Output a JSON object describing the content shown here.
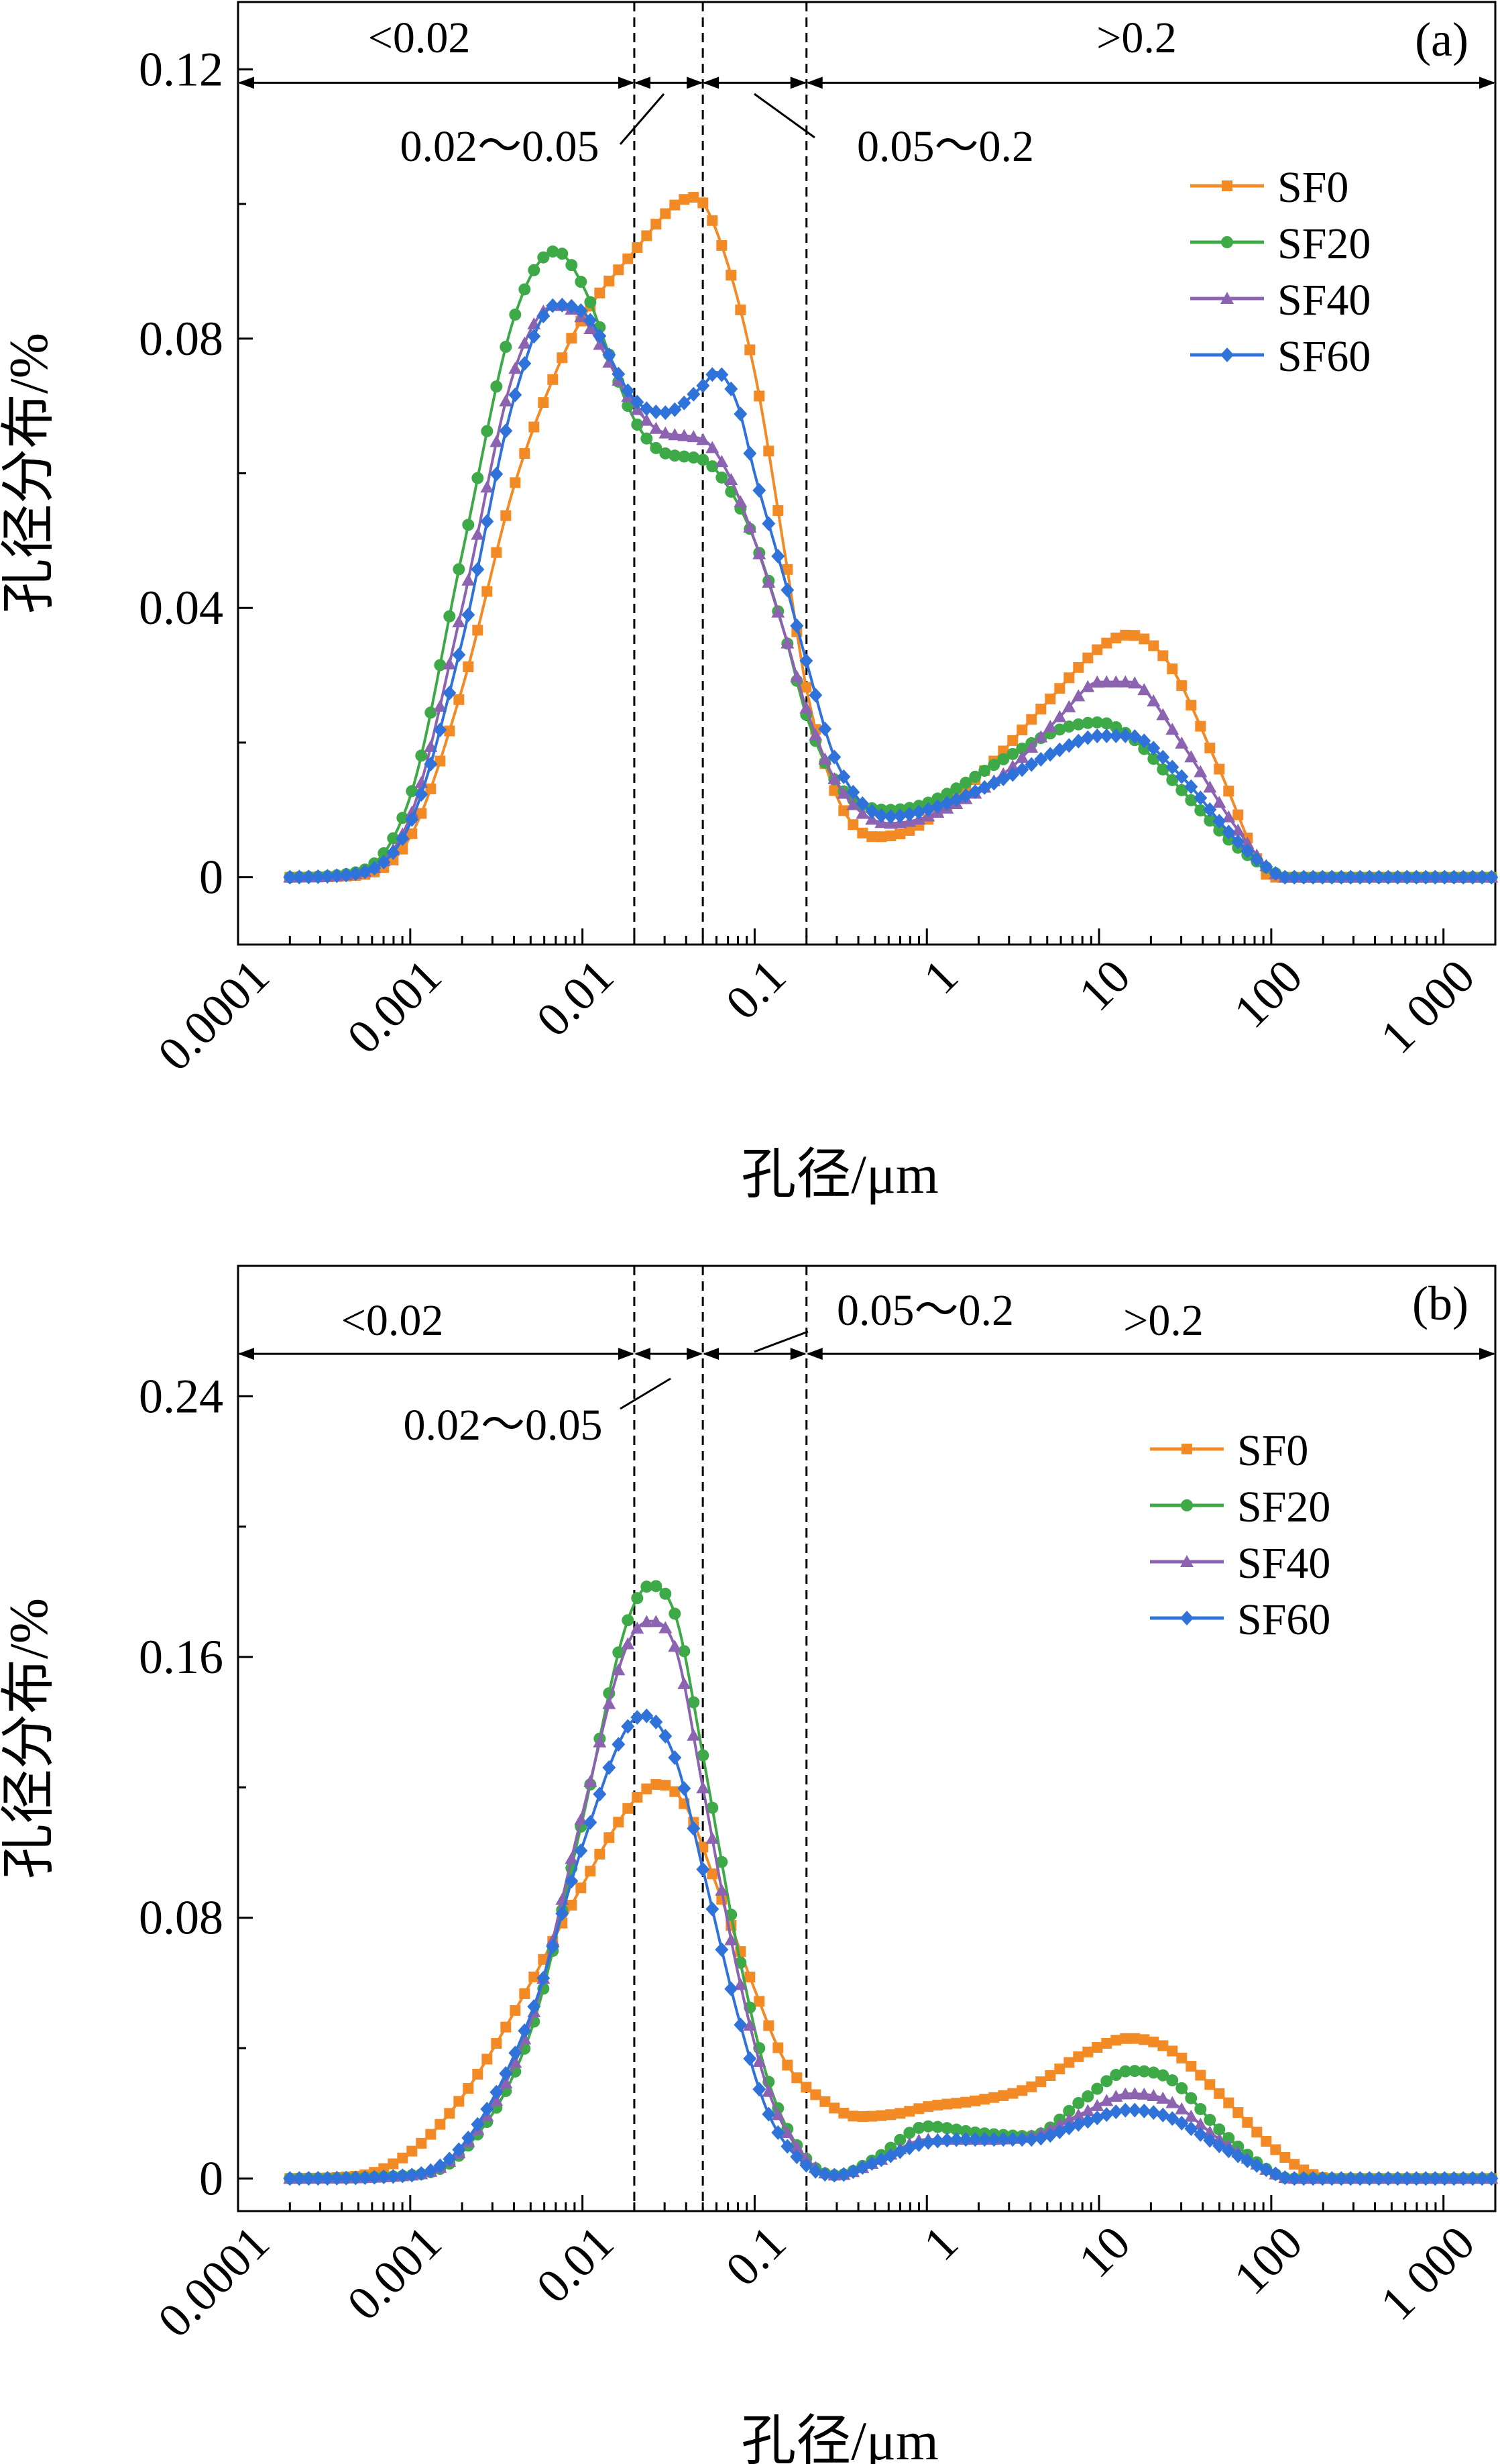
{
  "figure": {
    "panels": [
      "a",
      "b"
    ]
  },
  "chart_data": [
    {
      "type": "line",
      "panel_label": "(a)",
      "xlabel": "孔径/μm",
      "ylabel": "孔径分布/%",
      "xscale": "log",
      "xlim": [
        0.0001,
        2000
      ],
      "ylim": [
        -0.01,
        0.13
      ],
      "x_ticks": [
        0.0001,
        0.001,
        0.01,
        0.1,
        1,
        10,
        100,
        1000
      ],
      "x_tick_labels": [
        "0.0001",
        "0.001",
        "0.01",
        "0.1",
        "1",
        "10",
        "100",
        "1 000"
      ],
      "y_ticks": [
        0,
        0.04,
        0.08,
        0.12
      ],
      "y_tick_labels": [
        "0",
        "0.04",
        "0.08",
        "0.12"
      ],
      "vlines": [
        0.02,
        0.05,
        0.2
      ],
      "ranges": [
        {
          "label": "<0.02",
          "from": 0.0001,
          "to": 0.02
        },
        {
          "label": "0.02～0.05",
          "from": 0.02,
          "to": 0.05
        },
        {
          "label": "0.05～0.2",
          "from": 0.05,
          "to": 0.2
        },
        {
          "label": ">0.2",
          "from": 0.2,
          "to": 2000
        }
      ],
      "range_y": 0.118,
      "legend_position": "top-right",
      "series": [
        {
          "name": "SF0",
          "color": "#F28A26",
          "marker": "square",
          "points": [
            [
              0.0002,
              0
            ],
            [
              0.0005,
              0.0003
            ],
            [
              0.001,
              0.006
            ],
            [
              0.002,
              0.028
            ],
            [
              0.004,
              0.058
            ],
            [
              0.007,
              0.075
            ],
            [
              0.01,
              0.083
            ],
            [
              0.02,
              0.093
            ],
            [
              0.035,
              0.1
            ],
            [
              0.045,
              0.101
            ],
            [
              0.06,
              0.096
            ],
            [
              0.1,
              0.075
            ],
            [
              0.15,
              0.048
            ],
            [
              0.2,
              0.028
            ],
            [
              0.3,
              0.012
            ],
            [
              0.5,
              0.006
            ],
            [
              0.8,
              0.007
            ],
            [
              2,
              0.015
            ],
            [
              5,
              0.026
            ],
            [
              10,
              0.034
            ],
            [
              15,
              0.036
            ],
            [
              25,
              0.032
            ],
            [
              50,
              0.016
            ],
            [
              90,
              0.001
            ],
            [
              100,
              0
            ],
            [
              2000,
              0
            ]
          ]
        },
        {
          "name": "SF20",
          "color": "#3DAA47",
          "marker": "circle",
          "points": [
            [
              0.0002,
              0
            ],
            [
              0.0005,
              0.0008
            ],
            [
              0.001,
              0.012
            ],
            [
              0.002,
              0.048
            ],
            [
              0.004,
              0.083
            ],
            [
              0.007,
              0.093
            ],
            [
              0.01,
              0.088
            ],
            [
              0.02,
              0.068
            ],
            [
              0.03,
              0.063
            ],
            [
              0.05,
              0.062
            ],
            [
              0.07,
              0.058
            ],
            [
              0.1,
              0.05
            ],
            [
              0.15,
              0.036
            ],
            [
              0.2,
              0.024
            ],
            [
              0.3,
              0.014
            ],
            [
              0.6,
              0.01
            ],
            [
              1,
              0.011
            ],
            [
              3,
              0.018
            ],
            [
              6,
              0.022
            ],
            [
              10,
              0.023
            ],
            [
              15,
              0.021
            ],
            [
              30,
              0.013
            ],
            [
              60,
              0.005
            ],
            [
              100,
              0.001
            ],
            [
              120,
              0
            ],
            [
              2000,
              0
            ]
          ]
        },
        {
          "name": "SF40",
          "color": "#8C63B0",
          "marker": "triangle",
          "points": [
            [
              0.0002,
              0
            ],
            [
              0.0005,
              0.0006
            ],
            [
              0.001,
              0.009
            ],
            [
              0.002,
              0.04
            ],
            [
              0.004,
              0.075
            ],
            [
              0.007,
              0.085
            ],
            [
              0.01,
              0.083
            ],
            [
              0.02,
              0.07
            ],
            [
              0.03,
              0.066
            ],
            [
              0.05,
              0.065
            ],
            [
              0.07,
              0.06
            ],
            [
              0.1,
              0.05
            ],
            [
              0.15,
              0.036
            ],
            [
              0.2,
              0.025
            ],
            [
              0.3,
              0.014
            ],
            [
              0.6,
              0.008
            ],
            [
              1,
              0.009
            ],
            [
              3,
              0.016
            ],
            [
              6,
              0.024
            ],
            [
              10,
              0.029
            ],
            [
              15,
              0.029
            ],
            [
              30,
              0.02
            ],
            [
              60,
              0.008
            ],
            [
              100,
              0.001
            ],
            [
              120,
              0
            ],
            [
              2000,
              0
            ]
          ]
        },
        {
          "name": "SF60",
          "color": "#2F72D9",
          "marker": "diamond",
          "points": [
            [
              0.0002,
              0
            ],
            [
              0.0005,
              0.0006
            ],
            [
              0.001,
              0.008
            ],
            [
              0.002,
              0.035
            ],
            [
              0.004,
              0.071
            ],
            [
              0.007,
              0.085
            ],
            [
              0.01,
              0.084
            ],
            [
              0.02,
              0.071
            ],
            [
              0.03,
              0.069
            ],
            [
              0.05,
              0.073
            ],
            [
              0.06,
              0.075
            ],
            [
              0.08,
              0.07
            ],
            [
              0.1,
              0.06
            ],
            [
              0.15,
              0.044
            ],
            [
              0.2,
              0.032
            ],
            [
              0.3,
              0.017
            ],
            [
              0.6,
              0.009
            ],
            [
              1,
              0.01
            ],
            [
              3,
              0.015
            ],
            [
              6,
              0.019
            ],
            [
              10,
              0.021
            ],
            [
              15,
              0.021
            ],
            [
              30,
              0.015
            ],
            [
              60,
              0.006
            ],
            [
              100,
              0.001
            ],
            [
              120,
              0
            ],
            [
              2000,
              0
            ]
          ]
        }
      ]
    },
    {
      "type": "line",
      "panel_label": "(b)",
      "xlabel": "孔径/μm",
      "ylabel": "孔径分布/%",
      "xscale": "log",
      "xlim": [
        0.0001,
        2000
      ],
      "ylim": [
        -0.01,
        0.28
      ],
      "x_ticks": [
        0.0001,
        0.001,
        0.01,
        0.1,
        1,
        10,
        100,
        1000
      ],
      "x_tick_labels": [
        "0.0001",
        "0.001",
        "0.01",
        "0.1",
        "1",
        "10",
        "100",
        "1 000"
      ],
      "y_ticks": [
        0,
        0.08,
        0.16,
        0.24
      ],
      "y_tick_labels": [
        "0",
        "0.08",
        "0.16",
        "0.24"
      ],
      "vlines": [
        0.02,
        0.05,
        0.2
      ],
      "ranges": [
        {
          "label": "<0.02",
          "from": 0.0001,
          "to": 0.02
        },
        {
          "label": "0.02～0.05",
          "from": 0.02,
          "to": 0.05
        },
        {
          "label": "0.05～0.2",
          "from": 0.05,
          "to": 0.2
        },
        {
          "label": ">0.2",
          "from": 0.2,
          "to": 2000
        }
      ],
      "range_y": 0.253,
      "legend_position": "top-right",
      "series": [
        {
          "name": "SF0",
          "color": "#F28A26",
          "marker": "square",
          "points": [
            [
              0.0002,
              0
            ],
            [
              0.0005,
              0.0008
            ],
            [
              0.001,
              0.008
            ],
            [
              0.002,
              0.025
            ],
            [
              0.005,
              0.06
            ],
            [
              0.01,
              0.09
            ],
            [
              0.02,
              0.116
            ],
            [
              0.028,
              0.121
            ],
            [
              0.04,
              0.114
            ],
            [
              0.06,
              0.09
            ],
            [
              0.1,
              0.058
            ],
            [
              0.15,
              0.036
            ],
            [
              0.25,
              0.024
            ],
            [
              0.4,
              0.019
            ],
            [
              0.7,
              0.02
            ],
            [
              1,
              0.022
            ],
            [
              2,
              0.024
            ],
            [
              4,
              0.028
            ],
            [
              8,
              0.038
            ],
            [
              15,
              0.043
            ],
            [
              25,
              0.04
            ],
            [
              50,
              0.026
            ],
            [
              100,
              0.01
            ],
            [
              150,
              0.003
            ],
            [
              220,
              0
            ],
            [
              2000,
              0
            ]
          ]
        },
        {
          "name": "SF20",
          "color": "#3DAA47",
          "marker": "circle",
          "points": [
            [
              0.0002,
              0
            ],
            [
              0.001,
              0.001
            ],
            [
              0.002,
              0.008
            ],
            [
              0.005,
              0.045
            ],
            [
              0.01,
              0.11
            ],
            [
              0.018,
              0.17
            ],
            [
              0.025,
              0.182
            ],
            [
              0.035,
              0.172
            ],
            [
              0.05,
              0.13
            ],
            [
              0.08,
              0.07
            ],
            [
              0.12,
              0.03
            ],
            [
              0.2,
              0.006
            ],
            [
              0.3,
              0.001
            ],
            [
              0.5,
              0.006
            ],
            [
              1,
              0.016
            ],
            [
              2,
              0.014
            ],
            [
              4,
              0.013
            ],
            [
              8,
              0.024
            ],
            [
              15,
              0.033
            ],
            [
              25,
              0.031
            ],
            [
              50,
              0.015
            ],
            [
              100,
              0.002
            ],
            [
              130,
              0
            ],
            [
              2000,
              0
            ]
          ]
        },
        {
          "name": "SF40",
          "color": "#8C63B0",
          "marker": "triangle",
          "points": [
            [
              0.0002,
              0
            ],
            [
              0.001,
              0.001
            ],
            [
              0.002,
              0.009
            ],
            [
              0.005,
              0.048
            ],
            [
              0.01,
              0.112
            ],
            [
              0.018,
              0.163
            ],
            [
              0.025,
              0.171
            ],
            [
              0.035,
              0.162
            ],
            [
              0.05,
              0.12
            ],
            [
              0.08,
              0.063
            ],
            [
              0.12,
              0.027
            ],
            [
              0.2,
              0.006
            ],
            [
              0.3,
              0.001
            ],
            [
              0.5,
              0.005
            ],
            [
              1,
              0.012
            ],
            [
              2,
              0.012
            ],
            [
              4,
              0.013
            ],
            [
              8,
              0.02
            ],
            [
              15,
              0.026
            ],
            [
              25,
              0.024
            ],
            [
              50,
              0.012
            ],
            [
              100,
              0.002
            ],
            [
              130,
              0
            ],
            [
              2000,
              0
            ]
          ]
        },
        {
          "name": "SF60",
          "color": "#2F72D9",
          "marker": "diamond",
          "points": [
            [
              0.0002,
              0
            ],
            [
              0.001,
              0.001
            ],
            [
              0.002,
              0.01
            ],
            [
              0.005,
              0.05
            ],
            [
              0.01,
              0.102
            ],
            [
              0.018,
              0.138
            ],
            [
              0.023,
              0.142
            ],
            [
              0.035,
              0.128
            ],
            [
              0.05,
              0.095
            ],
            [
              0.08,
              0.05
            ],
            [
              0.12,
              0.02
            ],
            [
              0.2,
              0.004
            ],
            [
              0.3,
              0.001
            ],
            [
              0.5,
              0.005
            ],
            [
              1,
              0.011
            ],
            [
              2,
              0.012
            ],
            [
              4,
              0.012
            ],
            [
              8,
              0.017
            ],
            [
              15,
              0.021
            ],
            [
              25,
              0.019
            ],
            [
              50,
              0.01
            ],
            [
              100,
              0.002
            ],
            [
              130,
              0
            ],
            [
              2000,
              0
            ]
          ]
        }
      ]
    }
  ]
}
